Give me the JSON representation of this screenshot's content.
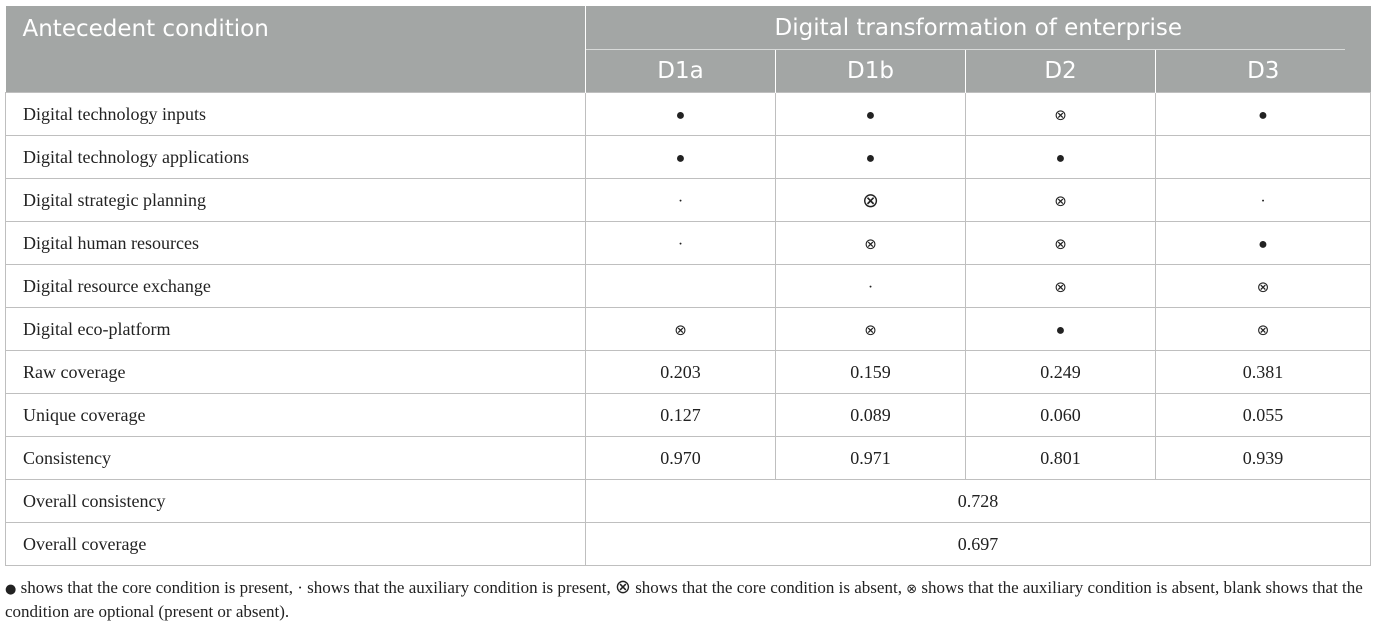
{
  "header": {
    "antecedent_label": "Antecedent condition",
    "group_label": "Digital transformation of enterprise",
    "columns": [
      "D1a",
      "D1b",
      "D2",
      "D3"
    ]
  },
  "symbols": {
    "core_present": "●",
    "aux_present": "·",
    "core_absent": "⊗",
    "aux_absent": "⊗",
    "blank": ""
  },
  "rows": [
    {
      "label": "Digital technology inputs",
      "cells": [
        "core_present",
        "core_present",
        "aux_absent",
        "core_present"
      ]
    },
    {
      "label": "Digital technology applications",
      "cells": [
        "core_present",
        "core_present",
        "core_present",
        "blank"
      ]
    },
    {
      "label": "Digital strategic planning",
      "cells": [
        "aux_present",
        "core_absent",
        "aux_absent",
        "aux_present"
      ]
    },
    {
      "label": "Digital human resources",
      "cells": [
        "aux_present",
        "aux_absent",
        "aux_absent",
        "core_present"
      ]
    },
    {
      "label": "Digital resource exchange",
      "cells": [
        "blank",
        "aux_present",
        "aux_absent",
        "aux_absent"
      ]
    },
    {
      "label": "Digital eco-platform",
      "cells": [
        "aux_absent",
        "aux_absent",
        "core_present",
        "aux_absent"
      ]
    }
  ],
  "metrics": [
    {
      "label": "Raw coverage",
      "values": [
        "0.203",
        "0.159",
        "0.249",
        "0.381"
      ]
    },
    {
      "label": "Unique coverage",
      "values": [
        "0.127",
        "0.089",
        "0.060",
        "0.055"
      ]
    },
    {
      "label": "Consistency",
      "values": [
        "0.970",
        "0.971",
        "0.801",
        "0.939"
      ]
    }
  ],
  "overall": [
    {
      "label": "Overall consistency",
      "value": "0.728"
    },
    {
      "label": "Overall coverage",
      "value": "0.697"
    }
  ],
  "footnote": {
    "sym1": "●",
    "text1": " shows that the core condition is present, · shows that the auxiliary condition is present, ",
    "sym2": "⊗",
    "text2": " shows that the core condition is absent, ",
    "sym3": "⊗",
    "text3": " shows that the auxiliary condition is absent, blank shows that the condition are optional (present or absent)."
  }
}
